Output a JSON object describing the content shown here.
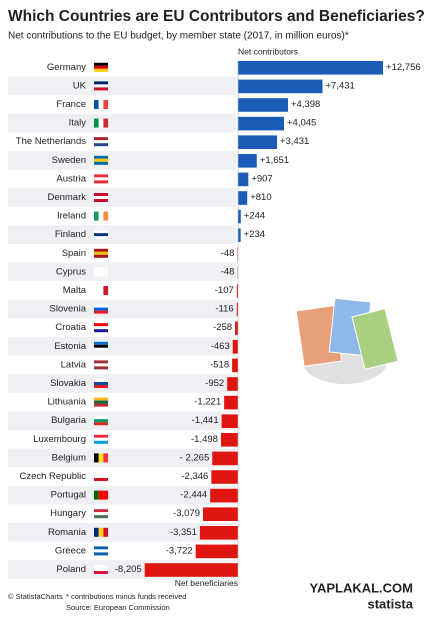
{
  "chart_data": {
    "type": "bar",
    "orientation": "horizontal",
    "title": "Which Countries are EU Contributors and Beneficiaries?",
    "subtitle": "Net contributions to the EU budget, by member state (2017, in million euros)*",
    "categories": [
      "Germany",
      "UK",
      "France",
      "Italy",
      "The Netherlands",
      "Sweden",
      "Austria",
      "Denmark",
      "Ireland",
      "Finland",
      "Spain",
      "Cyprus",
      "Malta",
      "Slovenia",
      "Croatia",
      "Estonia",
      "Latvia",
      "Slovakia",
      "Lithuania",
      "Bulgaria",
      "Luxembourg",
      "Belgium",
      "Czech Republic",
      "Portugal",
      "Hungary",
      "Romania",
      "Greece",
      "Poland"
    ],
    "values": [
      12756,
      7431,
      4398,
      4045,
      3431,
      1651,
      907,
      810,
      244,
      234,
      -48,
      -48,
      -107,
      -116,
      -258,
      -463,
      -518,
      -952,
      -1221,
      -1441,
      -1498,
      -2265,
      -2346,
      -2444,
      -3079,
      -3351,
      -3722,
      -8205
    ],
    "value_labels": [
      "+12,756",
      "+7,431",
      "+4,398",
      "+4,045",
      "+3,431",
      "+1,651",
      "+907",
      "+810",
      "+244",
      "+234",
      "-48",
      "-48",
      "-107",
      "-116",
      "-258",
      "-463",
      "-518",
      "-952",
      "-1,221",
      "-1,441",
      "-1,498",
      "- 2,265",
      "-2,346",
      "-2,444",
      "-3,079",
      "-3,351",
      "-3,722",
      "-8,205"
    ],
    "positive_color": "#1b5cb8",
    "negative_color": "#e0150f",
    "positive_label": "Net contributors",
    "negative_label": "Net beneficiaries"
  },
  "footer": {
    "credit": "© StatistaCharts",
    "footnote": "* contributions minus funds received",
    "source": "Source: European Commission",
    "brand": "statista",
    "watermark": "YAPLAKAL.COM"
  }
}
